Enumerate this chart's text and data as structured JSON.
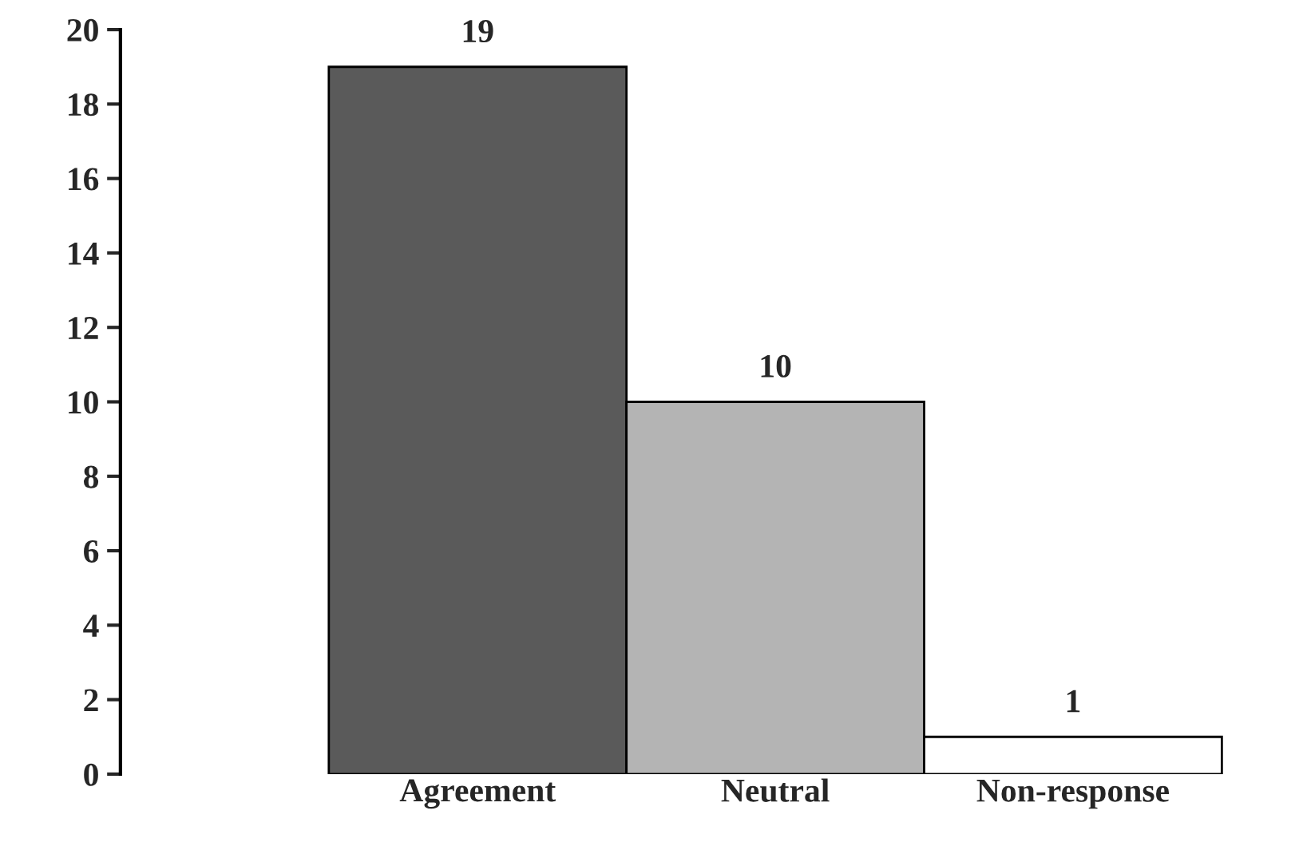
{
  "chart_data": {
    "type": "bar",
    "categories": [
      "Agreement",
      "Neutral",
      "Non-response"
    ],
    "values": [
      19,
      10,
      1
    ],
    "colors": [
      "#5a5a5a",
      "#b4b4b4",
      "#ffffff"
    ],
    "ylim": [
      0,
      20
    ],
    "yticks": [
      0,
      2,
      4,
      6,
      8,
      10,
      12,
      14,
      16,
      18,
      20
    ],
    "data_labels": true,
    "grid": false,
    "legend": false
  }
}
